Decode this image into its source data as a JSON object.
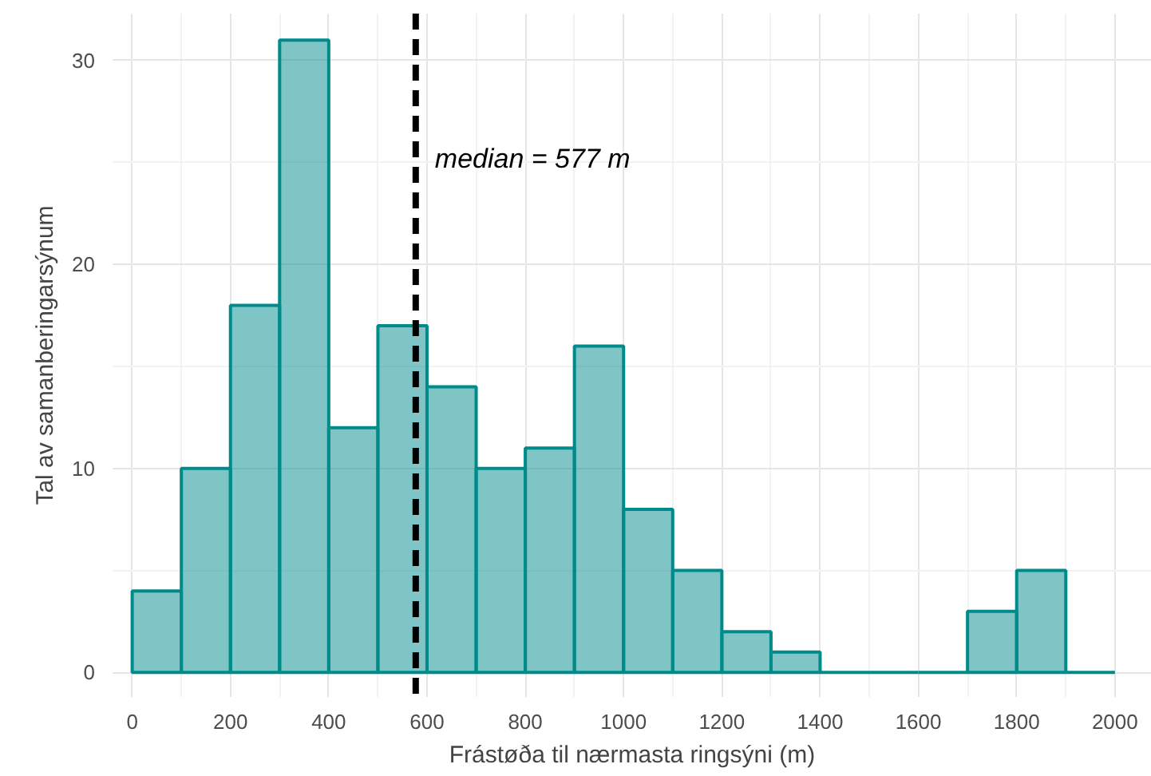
{
  "chart_data": {
    "type": "histogram",
    "xlabel": "Frástøða til nærmasta ringsýni (m)",
    "ylabel": "Tal av samanberingarsýnum",
    "bins": [
      0,
      100,
      200,
      300,
      400,
      500,
      600,
      700,
      800,
      900,
      1000,
      1100,
      1200,
      1300,
      1400,
      1500,
      1600,
      1700,
      1800,
      1900,
      2000
    ],
    "values": [
      4,
      10,
      18,
      31,
      12,
      17,
      14,
      10,
      11,
      16,
      8,
      5,
      2,
      1,
      0,
      0,
      0,
      3,
      5,
      0
    ],
    "color": "#008b8b",
    "xlim": [
      -40,
      2075
    ],
    "ylim": [
      -1.2,
      32.3
    ],
    "xticks": [
      0,
      200,
      400,
      600,
      800,
      1000,
      1200,
      1400,
      1600,
      1800,
      2000
    ],
    "yticks": [
      0,
      10,
      20,
      30
    ],
    "grid": true,
    "ref_lines": [
      {
        "axis": "x",
        "value": 577,
        "label": "median = 577 m",
        "color": "#000000",
        "line_style": "dashed"
      }
    ]
  }
}
